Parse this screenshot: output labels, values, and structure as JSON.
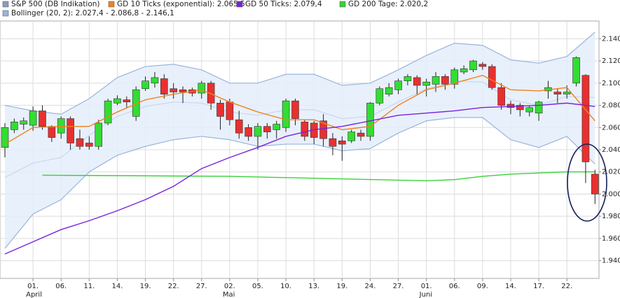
{
  "chart_data": {
    "type": "candlestick",
    "legend_name": "S&P 500 (DB Indikation)",
    "candle_up_color": "#33dd33",
    "candle_down_color": "#e83030",
    "categories": [
      null,
      null,
      null,
      "01.",
      null,
      null,
      "06.",
      null,
      null,
      "11.",
      null,
      null,
      "14.",
      null,
      null,
      "19.",
      null,
      null,
      "22.",
      null,
      null,
      "27.",
      null,
      null,
      "02.",
      null,
      null,
      "05.",
      null,
      null,
      "10.",
      null,
      null,
      "13.",
      null,
      null,
      "19.",
      null,
      null,
      "24.",
      null,
      null,
      "27.",
      null,
      null,
      "01.",
      null,
      null,
      "06.",
      null,
      null,
      "09.",
      null,
      null,
      "14.",
      null,
      null,
      "17.",
      null,
      null,
      "22.",
      null,
      null,
      null
    ],
    "month_categories": [
      null,
      null,
      null,
      "April",
      null,
      null,
      null,
      null,
      null,
      null,
      null,
      null,
      null,
      null,
      null,
      null,
      null,
      null,
      null,
      null,
      null,
      null,
      null,
      null,
      "Mai",
      null,
      null,
      null,
      null,
      null,
      null,
      null,
      null,
      null,
      null,
      null,
      null,
      null,
      null,
      null,
      null,
      null,
      null,
      null,
      null,
      "Juni",
      null,
      null,
      null,
      null,
      null,
      null,
      null,
      null,
      null,
      null,
      null,
      null,
      null,
      null,
      null,
      null,
      null,
      null
    ],
    "open": [
      2042,
      2058,
      2063,
      2062,
      2075,
      2061,
      2055,
      2068,
      2050,
      2046,
      2043,
      2064,
      2082,
      2085,
      2070,
      2095,
      2100,
      2104,
      2095,
      2094,
      2094,
      2091,
      2100,
      2082,
      2083,
      2067,
      2060,
      2052,
      2061,
      2058,
      2060,
      2084,
      2065,
      2064,
      2066,
      2050,
      2048,
      2048,
      2055,
      2052,
      2082,
      2090,
      2094,
      2102,
      2105,
      2098,
      2099,
      2106,
      2099,
      2110,
      2112,
      2117,
      2115,
      2096,
      2081,
      2080,
      2074,
      2073,
      2093,
      2092,
      2090,
      2100,
      2107,
      2018
    ],
    "close": [
      2060,
      2065,
      2066,
      2075,
      2061,
      2051,
      2068,
      2046,
      2043,
      2043,
      2064,
      2084,
      2086,
      2083,
      2094,
      2102,
      2105,
      2090,
      2092,
      2092,
      2091,
      2100,
      2082,
      2070,
      2067,
      2055,
      2052,
      2061,
      2056,
      2063,
      2084,
      2068,
      2052,
      2051,
      2050,
      2043,
      2045,
      2056,
      2052,
      2082,
      2095,
      2096,
      2102,
      2106,
      2098,
      2101,
      2106,
      2099,
      2112,
      2113,
      2120,
      2115,
      2096,
      2080,
      2078,
      2076,
      2078,
      2083,
      2096,
      2090,
      2092,
      2123,
      2029,
      2000
    ],
    "high": [
      2064,
      2068,
      2069,
      2079,
      2080,
      2062,
      2070,
      2070,
      2058,
      2052,
      2067,
      2086,
      2089,
      2088,
      2097,
      2106,
      2110,
      2108,
      2100,
      2097,
      2096,
      2102,
      2102,
      2085,
      2086,
      2075,
      2063,
      2064,
      2064,
      2066,
      2086,
      2086,
      2067,
      2066,
      2072,
      2055,
      2052,
      2058,
      2058,
      2083,
      2097,
      2100,
      2104,
      2108,
      2107,
      2104,
      2110,
      2108,
      2114,
      2116,
      2121,
      2119,
      2117,
      2100,
      2084,
      2082,
      2080,
      2084,
      2102,
      2095,
      2098,
      2124,
      2108,
      2022
    ],
    "low": [
      2033,
      2055,
      2058,
      2057,
      2058,
      2047,
      2050,
      2040,
      2040,
      2040,
      2040,
      2062,
      2080,
      2078,
      2066,
      2093,
      2096,
      2086,
      2086,
      2082,
      2088,
      2086,
      2076,
      2058,
      2062,
      2050,
      2048,
      2040,
      2050,
      2050,
      2056,
      2062,
      2048,
      2045,
      2043,
      2035,
      2030,
      2046,
      2048,
      2048,
      2080,
      2088,
      2090,
      2098,
      2090,
      2088,
      2092,
      2094,
      2095,
      2108,
      2110,
      2112,
      2094,
      2076,
      2072,
      2070,
      2070,
      2066,
      2086,
      2082,
      2086,
      2097,
      2010,
      1991
    ],
    "bollinger": {
      "name": "Bollinger (20, 2): 2.027,4 - 2.086,8 - 2.146,1",
      "color": "#9ab4dc",
      "x": [
        0,
        3,
        6,
        9,
        12,
        15,
        18,
        21,
        24,
        27,
        30,
        33,
        36,
        39,
        42,
        45,
        48,
        51,
        54,
        57,
        60,
        63
      ],
      "upper": [
        2080,
        2075,
        2072,
        2086,
        2105,
        2115,
        2117,
        2112,
        2100,
        2100,
        2108,
        2108,
        2098,
        2100,
        2112,
        2125,
        2136,
        2134,
        2121,
        2118,
        2124,
        2146
      ],
      "middle": [
        2015,
        2028,
        2033,
        2053,
        2070,
        2079,
        2083,
        2082,
        2074,
        2071,
        2076,
        2076,
        2068,
        2070,
        2083,
        2095,
        2102,
        2101,
        2085,
        2080,
        2088,
        2087
      ],
      "lower": [
        1951,
        1982,
        1995,
        2020,
        2035,
        2043,
        2049,
        2052,
        2049,
        2043,
        2045,
        2045,
        2039,
        2041,
        2055,
        2066,
        2069,
        2069,
        2049,
        2042,
        2052,
        2027
      ]
    },
    "series": [
      {
        "name": "GD 10 Ticks (exponential): 2.065,5",
        "color": "#f0821e",
        "x": [
          0,
          3,
          6,
          9,
          12,
          15,
          18,
          21,
          24,
          27,
          30,
          33,
          36,
          39,
          42,
          45,
          48,
          51,
          54,
          57,
          60,
          63
        ],
        "values": [
          2045,
          2060,
          2061,
          2061,
          2074,
          2085,
          2090,
          2094,
          2083,
          2074,
          2067,
          2067,
          2058,
          2061,
          2080,
          2094,
          2100,
          2107,
          2094,
          2093,
          2096,
          2066
        ]
      },
      {
        "name": "GD 50 Ticks: 2.079,4",
        "color": "#7a22dd",
        "x": [
          0,
          3,
          6,
          9,
          12,
          15,
          18,
          21,
          24,
          27,
          30,
          33,
          36,
          39,
          42,
          45,
          48,
          51,
          54,
          57,
          60,
          63
        ],
        "values": [
          1946,
          1957,
          1968,
          1976,
          1985,
          1995,
          2007,
          2023,
          2033,
          2042,
          2052,
          2058,
          2061,
          2066,
          2071,
          2073,
          2075,
          2078,
          2079,
          2080,
          2082,
          2079
        ]
      },
      {
        "name": "GD 200 Tage: 2.020,2",
        "color": "#3ad13a",
        "x": [
          4,
          24,
          45,
          48,
          51,
          54,
          60,
          63
        ],
        "values": [
          2017,
          2016,
          2012,
          2013,
          2016,
          2018,
          2020,
          2020
        ]
      }
    ],
    "ylim": [
      1924,
      2156
    ],
    "yticks": [
      {
        "value": 1940,
        "label": "1.940"
      },
      {
        "value": 1960,
        "label": "1.960"
      },
      {
        "value": 1980,
        "label": "1.980"
      },
      {
        "value": 2000,
        "label": "2.000"
      },
      {
        "value": 2020,
        "label": "2.020"
      },
      {
        "value": 2040,
        "label": "2.040"
      },
      {
        "value": 2060,
        "label": "2.060"
      },
      {
        "value": 2080,
        "label": "2.080"
      },
      {
        "value": 2100,
        "label": "2.100"
      },
      {
        "value": 2120,
        "label": "2.120"
      },
      {
        "value": 2140,
        "label": "2.140"
      }
    ],
    "grid": true
  }
}
